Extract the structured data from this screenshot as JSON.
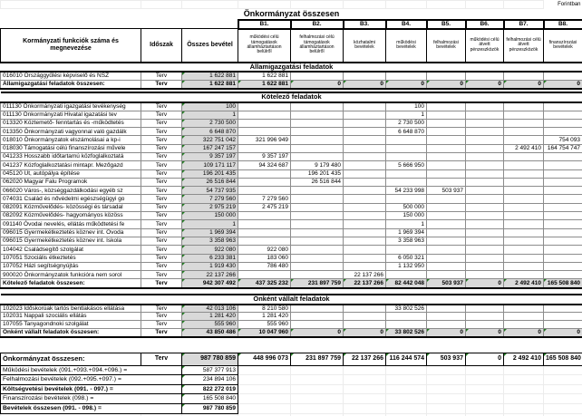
{
  "meta": {
    "currency_note": "Forintban",
    "title": "Önkormányzat összesen"
  },
  "header": {
    "col_functions": "Kormányzati funkciók száma és megnevezése",
    "col_period": "Időszak",
    "col_total": "Összes bevétel"
  },
  "columns": [
    {
      "code": "B1.",
      "label": "működési célú támogatások államháztartáson belülről"
    },
    {
      "code": "B2.",
      "label": "felhalmozási célú támogatások államháztartáson belülről"
    },
    {
      "code": "B3.",
      "label": "közhatalmi bevételek"
    },
    {
      "code": "B4.",
      "label": "működési bevételek"
    },
    {
      "code": "B5.",
      "label": "felhalmozási bevételek"
    },
    {
      "code": "B6.",
      "label": "működési célú átvett pénzeszközök"
    },
    {
      "code": "B7.",
      "label": "felhalmozási célú átvett pénzeszközök"
    },
    {
      "code": "B8.",
      "label": "finanszírozási bevételek"
    }
  ],
  "sections": [
    {
      "name": "Államigazgatási feladatok",
      "rows": [
        {
          "label": "016010 Országgyűlési képviselő és NSZ",
          "period": "Terv",
          "total": "1 622 881",
          "values": [
            "1 622 881",
            "",
            "",
            "",
            "",
            "",
            "",
            ""
          ]
        }
      ],
      "total": {
        "label": "Államigazgatási feladatok összesen:",
        "period": "Terv",
        "total": "1 622 881",
        "values": [
          "1 622 881",
          "0",
          "0",
          "0",
          "0",
          "0",
          "0",
          "0"
        ]
      }
    },
    {
      "name": "Kötelező feladatok",
      "rows": [
        {
          "label": "011130 Önkormányzati igazgatási tevékenység",
          "period": "Terv",
          "total": "100",
          "values": [
            "",
            "",
            "",
            "100",
            "",
            "",
            "",
            ""
          ]
        },
        {
          "label": "011130 Önkormányzati Hivatal igazatási tev",
          "period": "Terv",
          "total": "1",
          "values": [
            "",
            "",
            "",
            "1",
            "",
            "",
            "",
            ""
          ]
        },
        {
          "label": "013320 Köztemető- fenntartás és -működtetés",
          "period": "Terv",
          "total": "2 730 500",
          "values": [
            "",
            "",
            "",
            "2 730 500",
            "",
            "",
            "",
            ""
          ]
        },
        {
          "label": "013350 Önkormányzati vagyonnal való gazdálk",
          "period": "Terv",
          "total": "6 648 870",
          "values": [
            "",
            "",
            "",
            "6 648 870",
            "",
            "",
            "",
            ""
          ]
        },
        {
          "label": "018010 Önkormányzatok elszámolásai a kp-i",
          "period": "Terv",
          "total": "322 751 042",
          "values": [
            "321 996 949",
            "",
            "",
            "",
            "",
            "",
            "",
            "754 093"
          ]
        },
        {
          "label": "018030 Támogatási célú finanszírozási művele",
          "period": "Terv",
          "total": "167 247 157",
          "values": [
            "",
            "",
            "",
            "",
            "",
            "",
            "2 492 410",
            "164 754 747"
          ]
        },
        {
          "label": "041233 Hosszabb időtartamú közfoglalkoztatá",
          "period": "Terv",
          "total": "9 357 197",
          "values": [
            "9 357 197",
            "",
            "",
            "",
            "",
            "",
            "",
            ""
          ]
        },
        {
          "label": "041237 Közfoglalkoztatási mintapr. Mezőgazd",
          "period": "Terv",
          "total": "109 171 117",
          "values": [
            "94 324 687",
            "9 179 480",
            "",
            "5 666 950",
            "",
            "",
            "",
            ""
          ]
        },
        {
          "label": "045120 Út, autópálya építése",
          "period": "Terv",
          "total": "196 201 435",
          "values": [
            "",
            "196 201 435",
            "",
            "",
            "",
            "",
            "",
            ""
          ]
        },
        {
          "label": "062020 Magyar Falu Programok",
          "period": "Terv",
          "total": "26 516 844",
          "values": [
            "",
            "26 516 844",
            "",
            "",
            "",
            "",
            "",
            ""
          ]
        },
        {
          "label": "066020 Város-, községgazdálkodási egyéb sz",
          "period": "Terv",
          "total": "54 737 935",
          "values": [
            "",
            "",
            "",
            "54 233 998",
            "503 937",
            "",
            "",
            ""
          ]
        },
        {
          "label": "074031 Család és nővédelmi egészségügyi go",
          "period": "Terv",
          "total": "7 279 560",
          "values": [
            "7 279 560",
            "",
            "",
            "",
            "",
            "",
            "",
            ""
          ]
        },
        {
          "label": "082091 Közművelődés- közösségi és társadal",
          "period": "Terv",
          "total": "2 975 219",
          "values": [
            "2 475 219",
            "",
            "",
            "500 000",
            "",
            "",
            "",
            ""
          ]
        },
        {
          "label": "082092 Közművelődés- hagyományos közöss",
          "period": "Terv",
          "total": "150 000",
          "values": [
            "",
            "",
            "",
            "150 000",
            "",
            "",
            "",
            ""
          ]
        },
        {
          "label": "091140 Óvodai nevelés, ellátás működtetési fe",
          "period": "Terv",
          "total": "1",
          "values": [
            "",
            "",
            "",
            "1",
            "",
            "",
            "",
            ""
          ]
        },
        {
          "label": "096015 Gyermekétkeztetés köznev int. Óvoda",
          "period": "Terv",
          "total": "1 969 394",
          "values": [
            "",
            "",
            "",
            "1 969 394",
            "",
            "",
            "",
            ""
          ]
        },
        {
          "label": "096015 Gyermekétkeztetés köznev int. Iskola",
          "period": "Terv",
          "total": "3 358 963",
          "values": [
            "",
            "",
            "",
            "3 358 963",
            "",
            "",
            "",
            ""
          ]
        },
        {
          "label": "104042 Családsegítő szolgálat",
          "period": "Terv",
          "total": "922 080",
          "values": [
            "922 080",
            "",
            "",
            "",
            "",
            "",
            "",
            ""
          ]
        },
        {
          "label": "107051 Szociális étkeztetés",
          "period": "Terv",
          "total": "6 233 381",
          "values": [
            "183 060",
            "",
            "",
            "6 050 321",
            "",
            "",
            "",
            ""
          ]
        },
        {
          "label": "107052 Házi segítségnyújtás",
          "period": "Terv",
          "total": "1 919 430",
          "values": [
            "786 480",
            "",
            "",
            "1 132 950",
            "",
            "",
            "",
            ""
          ]
        },
        {
          "label": "900020 Önkormányzatok funkcióra nem sorol",
          "period": "Terv",
          "total": "22 137 266",
          "values": [
            "",
            "",
            "22 137 266",
            "",
            "",
            "",
            "",
            ""
          ]
        }
      ],
      "total": {
        "label": "Kötelező feladatok összesen:",
        "period": "Terv",
        "total": "942 307 492",
        "values": [
          "437 325 232",
          "231 897 759",
          "22 137 266",
          "82 442 048",
          "503 937",
          "0",
          "2 492 410",
          "165 508 840"
        ]
      }
    },
    {
      "name": "Önként vállalt feladatok",
      "rows": [
        {
          "label": "102023 Időskorúak tartós bentlakásos ellátása",
          "period": "Terv",
          "total": "42 013 106",
          "values": [
            "8 210 580",
            "",
            "",
            "33 802 526",
            "",
            "",
            "",
            ""
          ]
        },
        {
          "label": "102031 Nappali szociális ellátás",
          "period": "Terv",
          "total": "1 281 420",
          "values": [
            "1 281 420",
            "",
            "",
            "",
            "",
            "",
            "",
            ""
          ]
        },
        {
          "label": "107055 Tanyagondnoki szolgálat",
          "period": "Terv",
          "total": "555 960",
          "values": [
            "555 960",
            "",
            "",
            "",
            "",
            "",
            "",
            ""
          ]
        }
      ],
      "total": {
        "label": "Önként vállalt feladatok összesen:",
        "period": "Terv",
        "total": "43 850 486",
        "values": [
          "10 047 960",
          "0",
          "0",
          "33 802 526",
          "0",
          "0",
          "0",
          "0"
        ]
      }
    }
  ],
  "grand_total": {
    "label": "Önkormányzat összesen:",
    "period": "Terv",
    "total": "987 780 859",
    "values": [
      "448 996 073",
      "231 897 759",
      "22 137 266",
      "116 244 574",
      "503 937",
      "0",
      "2 492 410",
      "165 508 840"
    ]
  },
  "summary": [
    {
      "label": "Működési bevételek (091.+093.+094.+096.) =",
      "value": "587 377 913",
      "bold": false
    },
    {
      "label": "Felhalmozási bevételek (092.+095.+097.) =",
      "value": "234 894 106",
      "bold": false
    },
    {
      "label": "Költségvetési bevételek (091. - 097.) =",
      "value": "822 272 019",
      "bold": true
    },
    {
      "label": "Finanszírozási bevételek (098.) =",
      "value": "165 508 840",
      "bold": false
    },
    {
      "label": "Bevételek összesen (091. - 098.) =",
      "value": "987 780 859",
      "bold": true
    }
  ]
}
